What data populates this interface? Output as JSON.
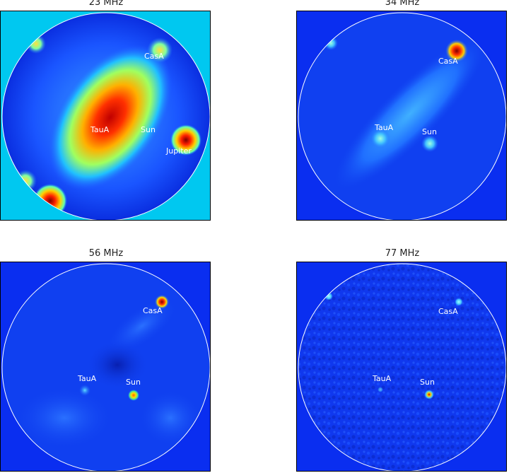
{
  "panels": [
    {
      "title": "23 MHz",
      "labels": {
        "casa": "CasA",
        "taua": "TauA",
        "sun": "Sun",
        "jupiter": "Jupiter"
      }
    },
    {
      "title": "34 MHz",
      "labels": {
        "casa": "CasA",
        "taua": "TauA",
        "sun": "Sun"
      }
    },
    {
      "title": "56 MHz",
      "labels": {
        "casa": "CasA",
        "taua": "TauA",
        "sun": "Sun"
      }
    },
    {
      "title": "77 MHz",
      "labels": {
        "casa": "CasA",
        "taua": "TauA",
        "sun": "Sun"
      }
    }
  ],
  "colors": {
    "background_23": "#00c8f0",
    "background_other": "#0a2ef0",
    "horizon_circle": "#ffffff",
    "hot": "#e00000",
    "warm": "#ffd000",
    "cool": "#40d0ff"
  }
}
